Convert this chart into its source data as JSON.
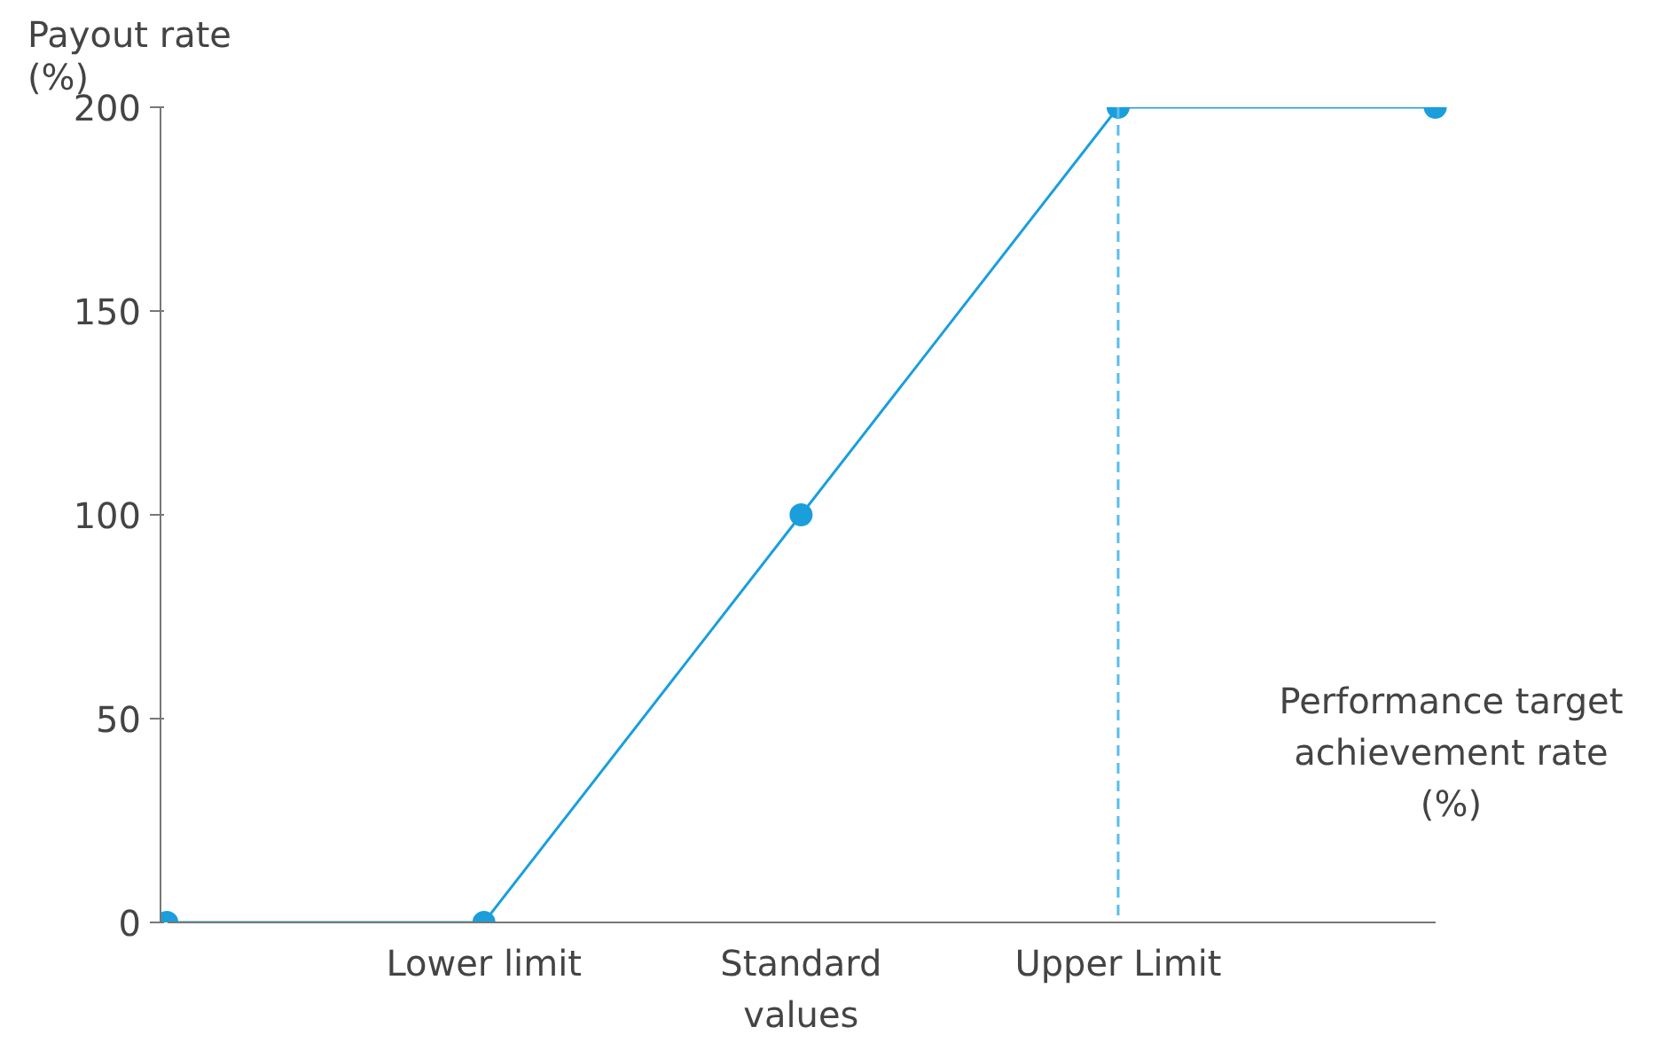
{
  "chart_data": {
    "type": "line",
    "ylabel": "Payout rate (%)",
    "xlabel": "Performance target achievement rate (%)",
    "categories": [
      null,
      "Lower limit",
      "Standard values",
      "Upper Limit",
      null
    ],
    "series": [
      {
        "color": "#1a9fdc",
        "values": [
          0,
          0,
          100,
          200,
          200
        ]
      }
    ],
    "ylim": [
      0,
      200
    ],
    "yticks": [
      0,
      50,
      100,
      150,
      200
    ],
    "marker": "circle",
    "line_style": "solid",
    "ref_lines": [
      {
        "axis": "x",
        "value": "Upper Limit",
        "color": "#5bbde8",
        "line_style": "dashed"
      }
    ]
  }
}
